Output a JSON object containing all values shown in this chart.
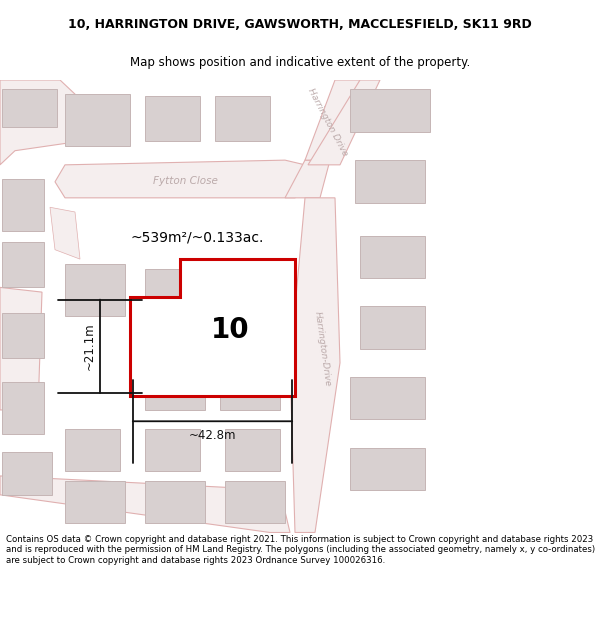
{
  "title": "10, HARRINGTON DRIVE, GAWSWORTH, MACCLESFIELD, SK11 9RD",
  "subtitle": "Map shows position and indicative extent of the property.",
  "footer": "Contains OS data © Crown copyright and database right 2021. This information is subject to Crown copyright and database rights 2023 and is reproduced with the permission of HM Land Registry. The polygons (including the associated geometry, namely x, y co-ordinates) are subject to Crown copyright and database rights 2023 Ordnance Survey 100026316.",
  "bg_color": "#ede8e8",
  "road_fill": "#f5eeee",
  "road_edge": "#e0b0b0",
  "building_fill": "#d8d0d0",
  "building_edge": "#c5b5b5",
  "plot_edge": "#cc0000",
  "plot_fill": "#ffffff",
  "plot_label": "10",
  "area_label": "~539m²/~0.133ac.",
  "width_label": "~42.8m",
  "height_label": "~21.1m",
  "street_fytton": "Fytton Close",
  "street_harr_upper": "Harrington Drive",
  "street_harr_lower": "Harrington-Drive",
  "street_color": "#bbaaaa",
  "dim_color": "#111111",
  "title_fontsize": 9.0,
  "subtitle_fontsize": 8.5,
  "footer_fontsize": 6.2,
  "plot_label_fontsize": 20,
  "area_fontsize": 10,
  "dim_fontsize": 8.5,
  "street_fontsize": 7.5
}
